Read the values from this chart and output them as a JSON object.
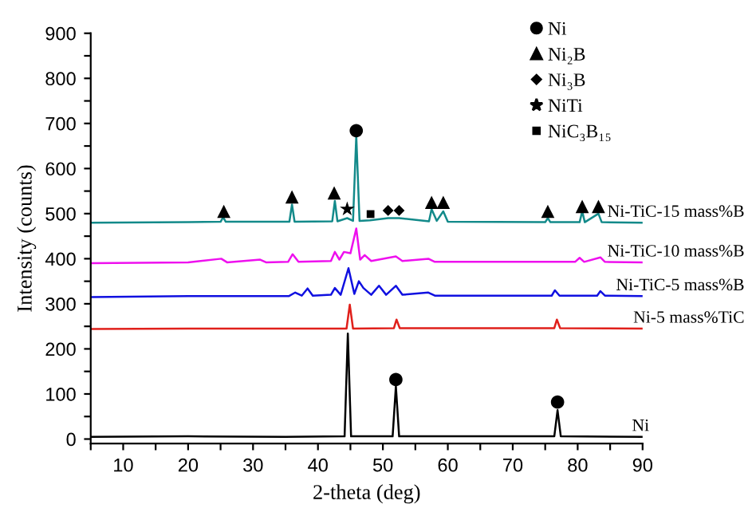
{
  "chart_data": {
    "type": "line",
    "xlabel": "2-theta (deg)",
    "ylabel": "Intensity (counts)",
    "xlim": [
      5,
      90
    ],
    "ylim": [
      -10,
      900
    ],
    "xticks": [
      {
        "value": 5,
        "label": null
      },
      10,
      {
        "value": 15,
        "label": null
      },
      20,
      {
        "value": 25,
        "label": null
      },
      30,
      {
        "value": 35,
        "label": null
      },
      40,
      {
        "value": 45,
        "label": null
      },
      50,
      {
        "value": 55,
        "label": null
      },
      60,
      {
        "value": 65,
        "label": null
      },
      70,
      {
        "value": 75,
        "label": null
      },
      80,
      {
        "value": 85,
        "label": null
      },
      90
    ],
    "yticks": [
      0,
      {
        "value": 50,
        "label": null
      },
      100,
      {
        "value": 150,
        "label": null
      },
      200,
      {
        "value": 250,
        "label": null
      },
      300,
      {
        "value": 350,
        "label": null
      },
      400,
      {
        "value": 450,
        "label": null
      },
      500,
      {
        "value": 550,
        "label": null
      },
      600,
      {
        "value": 650,
        "label": null
      },
      700,
      {
        "value": 750,
        "label": null
      },
      800,
      {
        "value": 850,
        "label": null
      },
      900
    ],
    "grid": false,
    "legend": "top right",
    "series": [
      {
        "name": "Ni",
        "color": "#000000",
        "x": [
          5,
          20,
          35,
          44.1,
          44.6,
          45.1,
          51.5,
          52.0,
          52.5,
          76.4,
          76.9,
          77.4,
          90
        ],
        "values": [
          5,
          6,
          5,
          6,
          234,
          6,
          6,
          117,
          6,
          6,
          64,
          6,
          5
        ]
      },
      {
        "name": "Ni-5 mass%TiC",
        "color": "#e0201b",
        "x": [
          5,
          20,
          44.4,
          44.9,
          45.4,
          51.7,
          52.1,
          52.6,
          76.4,
          76.8,
          77.3,
          90
        ],
        "values": [
          244,
          245,
          245,
          298,
          245,
          246,
          265,
          246,
          246,
          265,
          246,
          245
        ]
      },
      {
        "name": "Ni-TiC-5 mass%B",
        "color": "#1010e0",
        "x": [
          5,
          20,
          35.5,
          36.5,
          37.5,
          38.4,
          39.2,
          42.0,
          42.6,
          43.5,
          44.7,
          45.6,
          46.3,
          47.0,
          48.2,
          49.4,
          50.5,
          52.0,
          53.0,
          57.0,
          58.0,
          76.0,
          76.5,
          77.2,
          83.0,
          83.5,
          84.2,
          90
        ],
        "values": [
          315,
          317,
          317,
          325,
          318,
          334,
          318,
          320,
          335,
          320,
          379,
          322,
          350,
          335,
          320,
          340,
          320,
          340,
          320,
          325,
          318,
          318,
          330,
          318,
          318,
          328,
          318,
          317
        ]
      },
      {
        "name": "Ni-TiC-10 mass%B",
        "color": "#ee10ee",
        "x": [
          5,
          20,
          25.1,
          26,
          31.1,
          32,
          35.4,
          36.1,
          37,
          42,
          42.6,
          43.3,
          44.0,
          45.0,
          45.9,
          46.5,
          47.2,
          48.2,
          52.0,
          53,
          57,
          58,
          79.6,
          80.3,
          81,
          83.5,
          84.2,
          90
        ],
        "values": [
          390,
          392,
          400,
          392,
          398,
          392,
          393,
          410,
          393,
          395,
          415,
          398,
          415,
          412,
          467,
          398,
          408,
          395,
          405,
          395,
          400,
          393,
          393,
          402,
          393,
          403,
          393,
          392
        ]
      },
      {
        "name": "Ni-TiC-15 mass%B",
        "color": "#138a8a",
        "x": [
          5,
          20,
          25.0,
          25.4,
          25.8,
          35.6,
          36.0,
          36.4,
          42.2,
          42.6,
          43.0,
          44.5,
          45.4,
          45.9,
          46.4,
          48.0,
          50.8,
          52.5,
          57.1,
          57.5,
          58.3,
          59.3,
          60.0,
          75.0,
          75.4,
          75.8,
          80.3,
          80.7,
          81.1,
          83.2,
          83.7,
          90
        ],
        "values": [
          480,
          481,
          482,
          492,
          482,
          482,
          520,
          482,
          483,
          528,
          483,
          490,
          484,
          673,
          484,
          485,
          490,
          490,
          483,
          510,
          484,
          505,
          482,
          481,
          490,
          481,
          481,
          505,
          481,
          500,
          481,
          480
        ]
      },
      {
        "name": "Ni",
        "type": "scatter",
        "marker": "circle",
        "color": "#000000",
        "x": [
          45.9,
          52.0,
          76.9
        ],
        "values": [
          684,
          132,
          82
        ]
      },
      {
        "name": "Ni₂B",
        "type": "scatter",
        "marker": "triangle",
        "color": "#000000",
        "x": [
          25.5,
          36.0,
          42.5,
          57.5,
          59.3,
          75.4,
          80.7,
          83.2
        ],
        "values": [
          505,
          537,
          546,
          525,
          525,
          505,
          516,
          516
        ]
      },
      {
        "name": "Ni₃B",
        "type": "scatter",
        "marker": "diamond",
        "color": "#000000",
        "x": [
          50.8,
          52.5
        ],
        "values": [
          507,
          507
        ]
      },
      {
        "name": "NiTi",
        "type": "scatter",
        "marker": "star",
        "color": "#000000",
        "x": [
          44.5
        ],
        "values": [
          510
        ]
      },
      {
        "name": "NiC₃B₁₅",
        "type": "scatter",
        "marker": "square",
        "color": "#000000",
        "x": [
          48.1
        ],
        "values": [
          499
        ]
      }
    ]
  }
}
